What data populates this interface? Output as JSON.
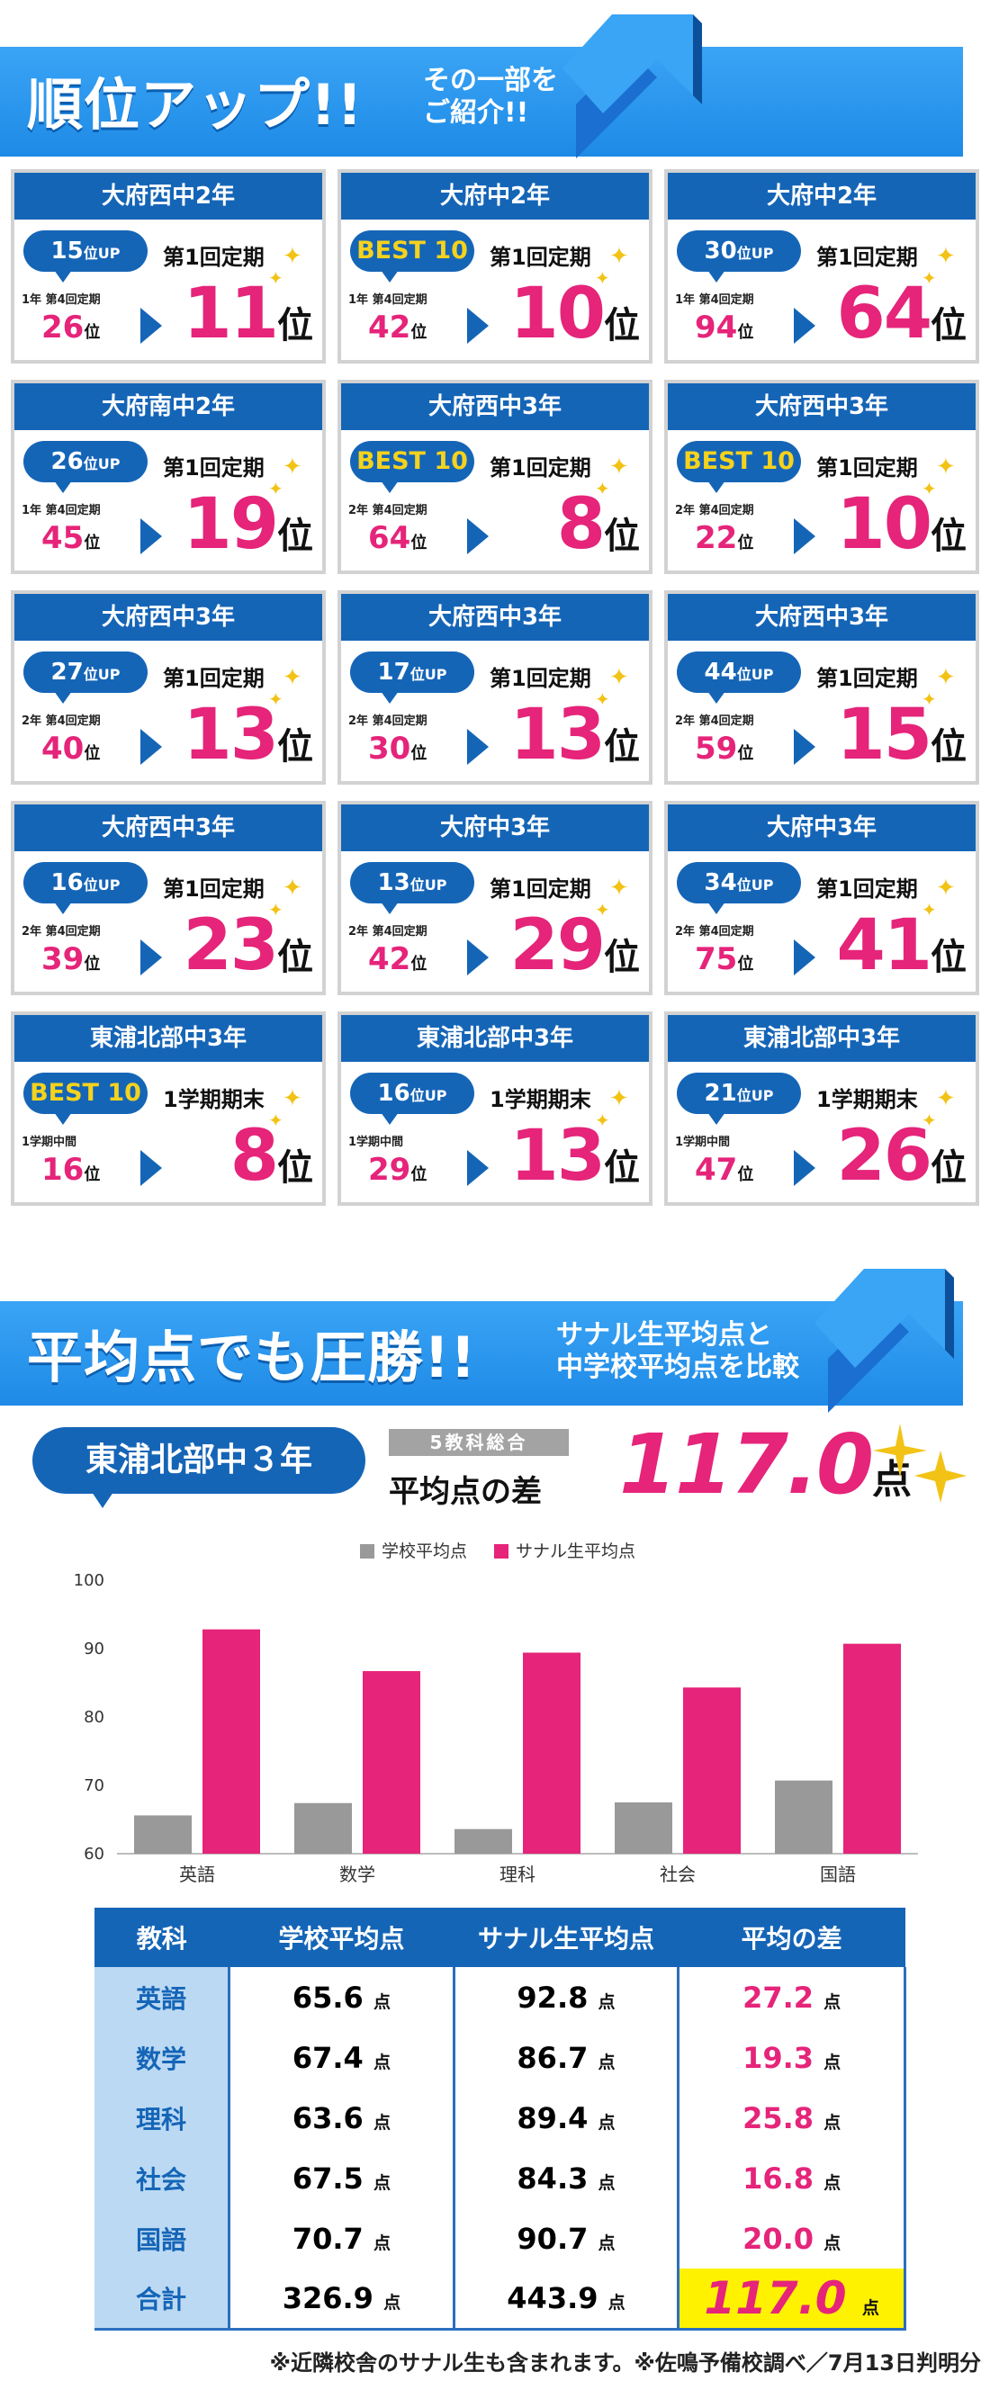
{
  "rank_banner": {
    "title": "順位アップ!!",
    "sub1": "その一部を",
    "sub2": "ご紹介!!"
  },
  "cards": [
    {
      "school": "大府西中2年",
      "badge": "15",
      "badge_unit": "位UP",
      "best": false,
      "exam": "第1回定期",
      "prev_label": "1年 第4回定期",
      "prev": "26",
      "unit": "位",
      "now": "11"
    },
    {
      "school": "大府中2年",
      "badge": "BEST 10",
      "badge_unit": "",
      "best": true,
      "exam": "第1回定期",
      "prev_label": "1年 第4回定期",
      "prev": "42",
      "unit": "位",
      "now": "10"
    },
    {
      "school": "大府中2年",
      "badge": "30",
      "badge_unit": "位UP",
      "best": false,
      "exam": "第1回定期",
      "prev_label": "1年 第4回定期",
      "prev": "94",
      "unit": "位",
      "now": "64"
    },
    {
      "school": "大府南中2年",
      "badge": "26",
      "badge_unit": "位UP",
      "best": false,
      "exam": "第1回定期",
      "prev_label": "1年 第4回定期",
      "prev": "45",
      "unit": "位",
      "now": "19"
    },
    {
      "school": "大府西中3年",
      "badge": "BEST 10",
      "badge_unit": "",
      "best": true,
      "exam": "第1回定期",
      "prev_label": "2年 第4回定期",
      "prev": "64",
      "unit": "位",
      "now": "8"
    },
    {
      "school": "大府西中3年",
      "badge": "BEST 10",
      "badge_unit": "",
      "best": true,
      "exam": "第1回定期",
      "prev_label": "2年 第4回定期",
      "prev": "22",
      "unit": "位",
      "now": "10"
    },
    {
      "school": "大府西中3年",
      "badge": "27",
      "badge_unit": "位UP",
      "best": false,
      "exam": "第1回定期",
      "prev_label": "2年 第4回定期",
      "prev": "40",
      "unit": "位",
      "now": "13"
    },
    {
      "school": "大府西中3年",
      "badge": "17",
      "badge_unit": "位UP",
      "best": false,
      "exam": "第1回定期",
      "prev_label": "2年 第4回定期",
      "prev": "30",
      "unit": "位",
      "now": "13"
    },
    {
      "school": "大府西中3年",
      "badge": "44",
      "badge_unit": "位UP",
      "best": false,
      "exam": "第1回定期",
      "prev_label": "2年 第4回定期",
      "prev": "59",
      "unit": "位",
      "now": "15"
    },
    {
      "school": "大府西中3年",
      "badge": "16",
      "badge_unit": "位UP",
      "best": false,
      "exam": "第1回定期",
      "prev_label": "2年 第4回定期",
      "prev": "39",
      "unit": "位",
      "now": "23"
    },
    {
      "school": "大府中3年",
      "badge": "13",
      "badge_unit": "位UP",
      "best": false,
      "exam": "第1回定期",
      "prev_label": "2年 第4回定期",
      "prev": "42",
      "unit": "位",
      "now": "29"
    },
    {
      "school": "大府中3年",
      "badge": "34",
      "badge_unit": "位UP",
      "best": false,
      "exam": "第1回定期",
      "prev_label": "2年 第4回定期",
      "prev": "75",
      "unit": "位",
      "now": "41"
    },
    {
      "school": "東浦北部中3年",
      "badge": "BEST 10",
      "badge_unit": "",
      "best": true,
      "exam": "1学期期末",
      "prev_label": "1学期中間",
      "prev": "16",
      "unit": "位",
      "now": "8"
    },
    {
      "school": "東浦北部中3年",
      "badge": "16",
      "badge_unit": "位UP",
      "best": false,
      "exam": "1学期期末",
      "prev_label": "1学期中間",
      "prev": "29",
      "unit": "位",
      "now": "13"
    },
    {
      "school": "東浦北部中3年",
      "badge": "21",
      "badge_unit": "位UP",
      "best": false,
      "exam": "1学期期末",
      "prev_label": "1学期中間",
      "prev": "47",
      "unit": "位",
      "now": "26"
    }
  ],
  "avg_banner": {
    "title": "平均点でも圧勝!!",
    "sub1": "サナル生平均点と",
    "sub2": "中学校平均点を比較"
  },
  "summary": {
    "school": "東浦北部中３年",
    "label5": "5教科総合",
    "diff_label": "平均点の差",
    "diff_value": "117.0",
    "unit": "点"
  },
  "chart_data": {
    "type": "bar",
    "categories": [
      "英語",
      "数学",
      "理科",
      "社会",
      "国語"
    ],
    "series": [
      {
        "name": "学校平均点",
        "color": "#999999",
        "values": [
          65.6,
          67.4,
          63.6,
          67.5,
          70.7
        ]
      },
      {
        "name": "サナル生平均点",
        "color": "#e5247a",
        "values": [
          92.8,
          86.7,
          89.4,
          84.3,
          90.7
        ]
      }
    ],
    "ylim": [
      60,
      100
    ],
    "yticks": [
      60,
      70,
      80,
      90,
      100
    ],
    "legend": "top",
    "grid": false
  },
  "table": {
    "headers": [
      "教科",
      "学校平均点",
      "サナル生平均点",
      "平均の差"
    ],
    "unit": "点",
    "rows": [
      {
        "subject": "英語",
        "school": "65.6",
        "sanaru": "92.8",
        "diff": "27.2"
      },
      {
        "subject": "数学",
        "school": "67.4",
        "sanaru": "86.7",
        "diff": "19.3"
      },
      {
        "subject": "理科",
        "school": "63.6",
        "sanaru": "89.4",
        "diff": "25.8"
      },
      {
        "subject": "社会",
        "school": "67.5",
        "sanaru": "84.3",
        "diff": "16.8"
      },
      {
        "subject": "国語",
        "school": "70.7",
        "sanaru": "90.7",
        "diff": "20.0"
      },
      {
        "subject": "合計",
        "school": "326.9",
        "sanaru": "443.9",
        "diff": "117.0"
      }
    ]
  },
  "footnote": "※近隣校舎のサナル生も含まれます。※佐鳴予備校調べ／7月13日判明分"
}
